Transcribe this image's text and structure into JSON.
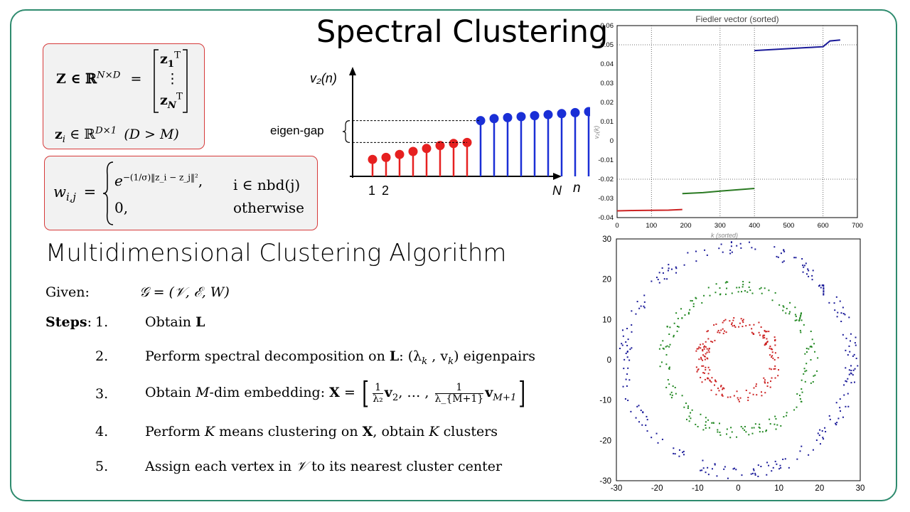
{
  "slide": {
    "title": "Spectral Clustering",
    "section_title": "Multidimensional Clustering Algorithm"
  },
  "box1": {
    "matrix_lhs": "Z ∈ ℝ",
    "matrix_lhs_exp": "N×D",
    "matrix_eq": "=",
    "row1": "z",
    "row1_sub": "1",
    "row1_sup": "T",
    "vdots": "⋮",
    "rowN": "z",
    "rowN_sub": "N",
    "rowN_sup": "T",
    "vector_def": "z",
    "vector_def_sub": "i",
    "vector_def_rest": " ∈ ℝ",
    "vector_def_exp": "D×1",
    "vector_cond": "(D > M)"
  },
  "box2": {
    "lhs": "w",
    "lhs_sub": "i,j",
    "eq": "=",
    "case1_expr": "e",
    "case1_exp": "−(1/σ)‖z_i − z_j‖²",
    "case1_comma": ",",
    "case1_cond": "i ∈ nbd(j)",
    "case2_expr": "0,",
    "case2_cond": "otherwise"
  },
  "stem_plot": {
    "ylabel": "v₂(n)",
    "xlabel": "n",
    "tick_1": "1",
    "tick_2": "2",
    "tick_N": "N",
    "gap_label": "eigen-gap",
    "red_values": [
      0.17,
      0.19,
      0.22,
      0.25,
      0.28,
      0.31,
      0.33,
      0.34
    ],
    "blue_values": [
      0.56,
      0.58,
      0.59,
      0.6,
      0.61,
      0.62,
      0.63,
      0.64,
      0.65
    ],
    "red_color": "#e62020",
    "blue_color": "#1a2fd6"
  },
  "given": {
    "label": "Given:",
    "expr": "𝒢 = (𝒱, ℰ, W)"
  },
  "steps": {
    "label": "Steps",
    "colon": ":",
    "items": [
      {
        "num": "1.",
        "text": "Obtain ",
        "bold": "L",
        "rest": ""
      },
      {
        "num": "2.",
        "text": "Perform spectral decomposition on ",
        "bold": "L",
        "rest": ":  (λ",
        "rest_sub": "k",
        "rest2": " , v",
        "rest2_sub": "k",
        "rest3": ") eigenpairs"
      },
      {
        "num": "3.",
        "text": "Obtain ",
        "ital": "M",
        "rest": "-dim embedding: ",
        "boldX": "X",
        "eq": " = ",
        "f1_num": "1",
        "f1_den": "λ₂",
        "v1": "v",
        "v1_sub": "2",
        "mid": ", … , ",
        "f2_num": "1",
        "f2_den": "λ_{M+1}",
        "v2": "v",
        "v2_sub": "M+1"
      },
      {
        "num": "4.",
        "text": "Perform ",
        "ital": "K",
        "rest": " means clustering on ",
        "boldX": "X",
        "rest2": ", obtain ",
        "ital2": "K",
        "rest3": " clusters"
      },
      {
        "num": "5.",
        "text": "Assign each vertex in ",
        "ital": "𝒱",
        "rest": " to its nearest cluster center"
      }
    ]
  },
  "fiedler_chart": {
    "chart_data": {
      "type": "line",
      "title": "Fiedler vector (sorted)",
      "xlabel": "k (sorted)",
      "ylabel": "v₂(k)",
      "xlim": [
        0,
        700
      ],
      "ylim": [
        -0.04,
        0.06
      ],
      "xticks": [
        "0",
        "100",
        "200",
        "300",
        "400",
        "500",
        "600",
        "700"
      ],
      "yticks": [
        "0.06",
        "0.05",
        "0.04",
        "0.03",
        "0.02",
        "0.01",
        "0",
        "-0.01",
        "-0.02",
        "-0.03",
        "-0.04"
      ],
      "series": [
        {
          "color": "#cc2222",
          "x": [
            0,
            50,
            100,
            150,
            190
          ],
          "y": [
            -0.0365,
            -0.0363,
            -0.0362,
            -0.0361,
            -0.0358
          ]
        },
        {
          "color": "#2a7a22",
          "x": [
            190,
            250,
            300,
            350,
            400
          ],
          "y": [
            -0.0275,
            -0.027,
            -0.0262,
            -0.0255,
            -0.0248
          ]
        },
        {
          "color": "#1a1a99",
          "x": [
            400,
            450,
            500,
            550,
            600,
            620,
            650
          ],
          "y": [
            0.047,
            0.0475,
            0.048,
            0.0485,
            0.049,
            0.052,
            0.0525
          ]
        }
      ]
    }
  },
  "scatter_chart": {
    "chart_data": {
      "type": "scatter",
      "xlim": [
        -30,
        30
      ],
      "ylim": [
        -30,
        30
      ],
      "xticks": [
        "-30",
        "-20",
        "-10",
        "0",
        "10",
        "20",
        "30"
      ],
      "yticks": [
        "30",
        "20",
        "10",
        "0",
        "-10",
        "-20",
        "-30"
      ],
      "series": [
        {
          "color": "#cc2222",
          "shape": "ring",
          "radius": 9,
          "count": 190
        },
        {
          "color": "#228822",
          "shape": "ring",
          "radius": 18,
          "count": 210
        },
        {
          "color": "#1a1a99",
          "shape": "ring",
          "radius": 28,
          "count": 250
        }
      ]
    }
  }
}
